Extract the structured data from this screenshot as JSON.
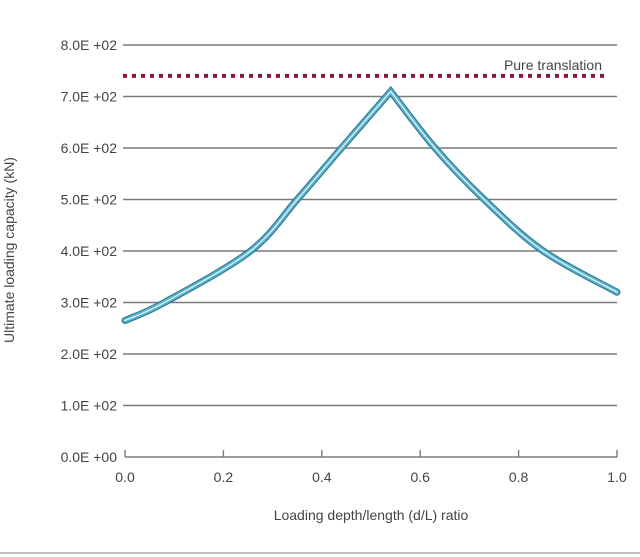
{
  "chart_data": {
    "type": "line",
    "title": "",
    "xlabel": "Loading depth/length (d/L) ratio",
    "ylabel": "Ultimate loading capacity (kN)",
    "xlim": [
      0.0,
      1.0
    ],
    "ylim": [
      0,
      800
    ],
    "x_ticks": [
      "0.0",
      "0.2",
      "0.4",
      "0.6",
      "0.8",
      "1.0"
    ],
    "y_ticks": [
      "0.0E +00",
      "1.0E +02",
      "2.0E +02",
      "3.0E +02",
      "4.0E +02",
      "5.0E +02",
      "6.0E +02",
      "7.0E +02",
      "8.0E +02"
    ],
    "grid": "horizontal",
    "series": [
      {
        "name": "Ultimate loading capacity",
        "color": "#5fb3cc",
        "x": [
          0.0,
          0.08,
          0.255,
          0.35,
          0.44,
          0.54,
          0.63,
          0.73,
          0.85,
          1.0
        ],
        "values": [
          265,
          300,
          400,
          500,
          600,
          710,
          600,
          500,
          400,
          320
        ]
      }
    ],
    "reference_lines": [
      {
        "name": "Pure translation",
        "value": 740,
        "style": "dotted",
        "color": "#8b1a3a"
      }
    ],
    "annotations": [
      {
        "text": "Pure translation",
        "x": 0.95,
        "y": 765
      }
    ]
  }
}
